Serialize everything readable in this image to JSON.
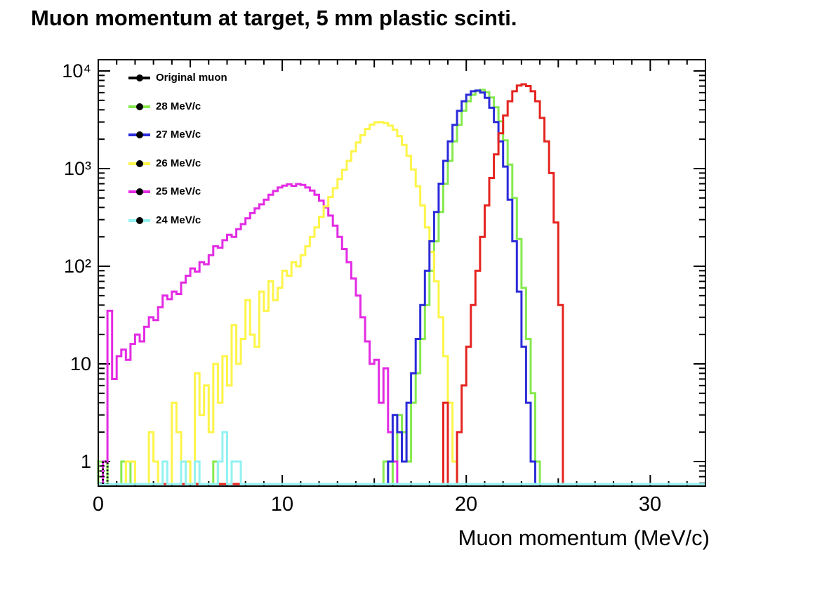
{
  "title": "Muon momentum at target, 5 mm plastic scinti.",
  "legend": {
    "items": [
      {
        "label": "Original muon",
        "color": "#000000"
      },
      {
        "label": "28 MeV/c",
        "color": "#86e94f"
      },
      {
        "label": "27 MeV/c",
        "color": "#2b2bd9"
      },
      {
        "label": "26 MeV/c",
        "color": "#fdf549"
      },
      {
        "label": "25 MeV/c",
        "color": "#e32be3"
      },
      {
        "label": "24 MeV/c",
        "color": "#93f2f1"
      }
    ]
  },
  "chart_data": {
    "type": "histogram",
    "title": "Muon momentum at target, 5 mm plastic scinti.",
    "x_axis": {
      "label": "Muon momentum (MeV/c)",
      "min": 0,
      "max": 33,
      "major_tick_values": [
        0,
        10,
        20,
        30
      ],
      "major_tick_labels": [
        "0",
        "10",
        "20",
        "30"
      ],
      "medium_tick_step": 5,
      "minor_tick_step": 1
    },
    "y_axis": {
      "scale": "log",
      "min": 0.56,
      "max": 13000,
      "tick_values": [
        1,
        10,
        100,
        1000,
        10000
      ],
      "tick_labels": [
        "1",
        "10",
        "10²",
        "10³",
        "10⁴"
      ]
    },
    "bin_width": 0.25,
    "line_width": 3,
    "series": [
      {
        "name": "28 MeV/c",
        "color": "#86e94f",
        "segments": [
          [
            0,
            [
              1,
              1
            ]
          ],
          [
            1.25,
            [
              1,
              1
            ]
          ],
          [
            6.25,
            [
              1
            ]
          ],
          [
            15.5,
            [
              1
            ]
          ],
          [
            16,
            [
              1,
              3,
              2,
              1,
              4,
              8,
              18,
              40,
              90,
              180,
              360,
              700,
              1200,
              1900,
              2800,
              3900,
              4900,
              5700,
              6250,
              6400,
              6050,
              5350,
              4250,
              3050,
              1950,
              1100,
              500,
              190,
              60,
              18,
              5,
              1
            ]
          ]
        ]
      },
      {
        "name": "25 MeV/c",
        "color": "#e32be3",
        "segments": [
          [
            0.25,
            [
              1,
              35,
              7,
              12,
              14,
              11,
              16,
              20,
              17,
              24,
              30,
              28,
              38,
              50,
              46,
              55,
              52,
              68,
              80,
              95,
              88,
              110,
              105,
              130,
              160,
              155,
              185,
              210,
              200,
              240,
              270,
              310,
              350,
              390,
              430,
              480,
              540,
              590,
              640,
              670,
              690,
              665,
              695,
              680,
              640,
              595,
              540,
              470,
              400,
              330,
              260,
              200,
              150,
              110,
              75,
              50,
              30,
              17,
              10,
              11,
              4,
              9,
              2,
              1
            ]
          ]
        ]
      },
      {
        "name": "26 MeV/c",
        "color": "#fdf549",
        "segments": [
          [
            1.5,
            [
              1,
              1,
              0,
              0,
              0,
              2,
              1,
              0,
              0,
              0,
              4,
              2,
              0,
              1,
              0,
              8,
              3,
              6,
              2,
              10,
              4,
              12,
              6,
              25,
              10,
              18,
              45,
              20,
              15,
              55,
              35,
              70,
              45,
              60,
              90,
              80,
              110,
              100,
              130,
              160,
              200,
              250,
              320,
              410,
              510,
              630,
              780,
              970,
              1200,
              1500,
              1850,
              2200,
              2550,
              2820,
              2980,
              3000,
              2920,
              2750,
              2500,
              2150,
              1750,
              1350,
              980,
              660,
              420,
              250,
              140,
              70,
              30,
              12,
              4,
              1
            ]
          ]
        ]
      },
      {
        "name": "27 MeV/c",
        "color": "#2b2bd9",
        "segments": [
          [
            15.75,
            [
              1,
              3,
              2,
              1,
              4,
              8,
              18,
              40,
              90,
              180,
              360,
              700,
              1200,
              1900,
              2800,
              3900,
              4900,
              5700,
              6200,
              6300,
              6000,
              5300,
              4200,
              3000,
              1900,
              1050,
              480,
              180,
              55,
              15,
              4,
              1
            ]
          ]
        ]
      },
      {
        "name": "unlabeled red",
        "color": "#e52420",
        "segments": [
          [
            18.75,
            [
              4,
              0,
              0,
              2,
              6,
              15,
              40,
              90,
              200,
              420,
              800,
              1400,
              2300,
              3500,
              4900,
              6200,
              7100,
              7300,
              7000,
              6200,
              4900,
              3300,
              1900,
              900,
              280,
              40
            ]
          ]
        ]
      },
      {
        "name": "24 MeV/c",
        "color": "#93f2f1",
        "segments": [
          [
            3.5,
            [
              1
            ]
          ],
          [
            4.5,
            [
              1
            ]
          ],
          [
            5.25,
            [
              1
            ]
          ],
          [
            6.5,
            [
              1,
              2,
              0,
              1,
              1
            ]
          ]
        ]
      },
      {
        "name": "Original muon",
        "color": "#000000",
        "line_style": "dotted",
        "baseline": false,
        "segments": [
          [
            0.25,
            [
              1
            ]
          ]
        ]
      }
    ]
  }
}
